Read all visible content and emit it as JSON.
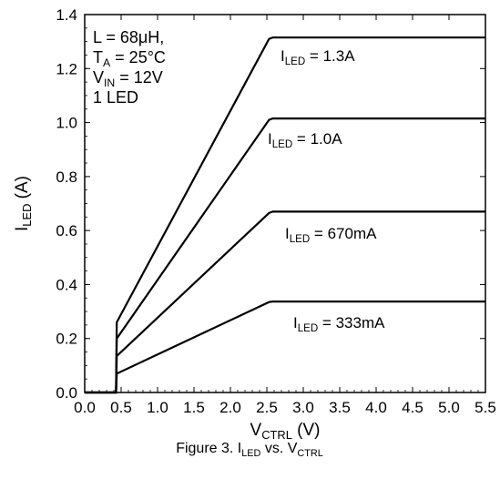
{
  "chart_data": {
    "type": "line",
    "title": "",
    "xlabel": {
      "main": "V",
      "sub": "CTRL",
      "tail": " (V)"
    },
    "ylabel": {
      "main": "I",
      "sub": "LED",
      "tail": "  (A)"
    },
    "xlim": [
      0,
      5.5
    ],
    "ylim": [
      0,
      1.4
    ],
    "grid": false,
    "x_ticks": [
      0.0,
      0.5,
      1.0,
      1.5,
      2.0,
      2.5,
      3.0,
      3.5,
      4.0,
      4.5,
      5.0,
      5.5
    ],
    "x_tick_labels": [
      "0.0",
      "0.5",
      "1.0",
      "1.5",
      "2.0",
      "2.5",
      "3.0",
      "3.5",
      "4.0",
      "4.5",
      "5.0",
      "5.5"
    ],
    "y_ticks": [
      0.0,
      0.2,
      0.4,
      0.6,
      0.8,
      1.0,
      1.2,
      1.4
    ],
    "y_tick_labels": [
      "0.0",
      "0.2",
      "0.4",
      "0.6",
      "0.8",
      "1.0",
      "1.2",
      "1.4"
    ],
    "conditions": [
      {
        "main": "L = 68μH,",
        "sub": "",
        "tail": ""
      },
      {
        "main": "T",
        "sub": "A",
        "tail": " = 25°C"
      },
      {
        "main": "V",
        "sub": "IN",
        "tail": " = 12V"
      },
      {
        "main": "1 LED",
        "sub": "",
        "tail": ""
      }
    ],
    "series": [
      {
        "label": {
          "main": "I",
          "sub": "LED",
          "tail": " = 1.3A"
        },
        "x": [
          0,
          0.39,
          0.43,
          0.44,
          2.53,
          2.58,
          5.5
        ],
        "y": [
          0,
          0,
          0.0,
          0.26,
          1.31,
          1.315,
          1.315
        ]
      },
      {
        "label": {
          "main": "I",
          "sub": "LED",
          "tail": " = 1.0A"
        },
        "x": [
          0,
          0.39,
          0.43,
          0.44,
          2.53,
          2.58,
          5.5
        ],
        "y": [
          0,
          0,
          0.0,
          0.2,
          1.01,
          1.015,
          1.015
        ]
      },
      {
        "label": {
          "main": "I",
          "sub": "LED",
          "tail": " = 670mA"
        },
        "x": [
          0,
          0.39,
          0.43,
          0.44,
          2.53,
          2.58,
          5.5
        ],
        "y": [
          0,
          0,
          0.0,
          0.135,
          0.665,
          0.67,
          0.67
        ]
      },
      {
        "label": {
          "main": "I",
          "sub": "LED",
          "tail": " = 333mA"
        },
        "x": [
          0,
          0.39,
          0.43,
          0.44,
          2.53,
          2.58,
          5.5
        ],
        "y": [
          0,
          0,
          0.0,
          0.07,
          0.335,
          0.337,
          0.337
        ]
      }
    ],
    "caption": {
      "pre": "Figure 3. I",
      "sub1": "LED",
      "mid": " vs. V",
      "sub2": "CTRL"
    }
  }
}
